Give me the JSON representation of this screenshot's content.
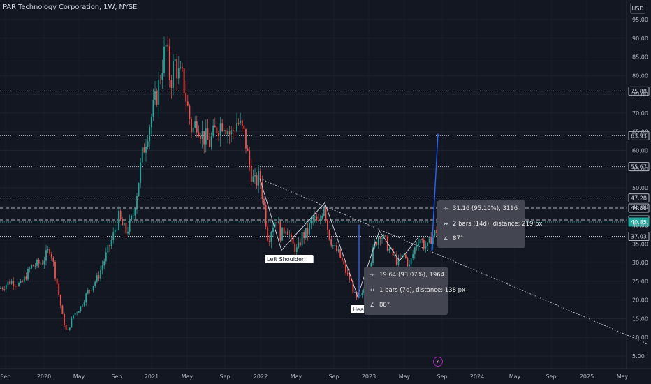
{
  "header": {
    "title": "PAR Technology Corporation, 1W, NYSE"
  },
  "currency_button": "USD",
  "chart_data": {
    "type": "candlestick",
    "symbol": "PAR Technology Corporation",
    "interval": "1W",
    "exchange": "NYSE",
    "y_ticks": [
      "95.00",
      "90.00",
      "85.00",
      "80.00",
      "75.00",
      "70.00",
      "65.00",
      "60.00",
      "55.00",
      "50.00",
      "45.00",
      "40.00",
      "35.00",
      "30.00",
      "25.00",
      "20.00",
      "15.00",
      "10.00",
      "5.00"
    ],
    "x_ticks": [
      "Sep",
      "2020",
      "May",
      "Sep",
      "2021",
      "May",
      "Sep",
      "2022",
      "May",
      "Sep",
      "2023",
      "May",
      "Sep",
      "2024",
      "May",
      "Sep",
      "2025",
      "May"
    ],
    "ylim": [
      3,
      97
    ],
    "horizontal_levels": [
      {
        "value": 75.88,
        "label": "75.88",
        "style": "dotted"
      },
      {
        "value": 63.93,
        "label": "63.93",
        "style": "dotted"
      },
      {
        "value": 55.67,
        "label": "55.67",
        "style": "dotted"
      },
      {
        "value": 47.28,
        "label": "47.28",
        "style": "dotted"
      },
      {
        "value": 44.58,
        "label": "44.58",
        "style": "dashed"
      },
      {
        "value": 41.42,
        "label": "41.42",
        "style": "dashed"
      },
      {
        "value": 40.85,
        "label": "40.85",
        "style": "current"
      },
      {
        "value": 37.03,
        "label": "37.03",
        "style": "dotted"
      }
    ],
    "annotations": [
      "Left Shoulder",
      "Head"
    ],
    "measure_tools": [
      {
        "lines": [
          "31.16 (95.10%), 3116",
          "2 bars (14d), distance: 219 px",
          "87°"
        ]
      },
      {
        "lines": [
          "19.64 (93.07%), 1964",
          "1 bars (7d), distance: 138 px",
          "88°"
        ]
      }
    ],
    "price_path": [
      {
        "x": 0,
        "y": 23
      },
      {
        "x": 15,
        "y": 25
      },
      {
        "x": 30,
        "y": 24
      },
      {
        "x": 45,
        "y": 29
      },
      {
        "x": 60,
        "y": 30
      },
      {
        "x": 72,
        "y": 34
      },
      {
        "x": 82,
        "y": 24
      },
      {
        "x": 90,
        "y": 15
      },
      {
        "x": 96,
        "y": 11
      },
      {
        "x": 105,
        "y": 16
      },
      {
        "x": 115,
        "y": 18
      },
      {
        "x": 125,
        "y": 22
      },
      {
        "x": 140,
        "y": 26
      },
      {
        "x": 150,
        "y": 31
      },
      {
        "x": 160,
        "y": 36
      },
      {
        "x": 170,
        "y": 42
      },
      {
        "x": 180,
        "y": 38
      },
      {
        "x": 190,
        "y": 42
      },
      {
        "x": 197,
        "y": 50
      },
      {
        "x": 203,
        "y": 58
      },
      {
        "x": 210,
        "y": 64
      },
      {
        "x": 218,
        "y": 70
      },
      {
        "x": 226,
        "y": 76
      },
      {
        "x": 232,
        "y": 83
      },
      {
        "x": 238,
        "y": 88
      },
      {
        "x": 244,
        "y": 78
      },
      {
        "x": 250,
        "y": 84
      },
      {
        "x": 256,
        "y": 80
      },
      {
        "x": 262,
        "y": 79
      },
      {
        "x": 268,
        "y": 72
      },
      {
        "x": 275,
        "y": 65
      },
      {
        "x": 282,
        "y": 68
      },
      {
        "x": 290,
        "y": 64
      },
      {
        "x": 300,
        "y": 62
      },
      {
        "x": 310,
        "y": 66
      },
      {
        "x": 320,
        "y": 68
      },
      {
        "x": 330,
        "y": 64
      },
      {
        "x": 340,
        "y": 68
      },
      {
        "x": 350,
        "y": 64
      },
      {
        "x": 357,
        "y": 56
      },
      {
        "x": 364,
        "y": 51
      },
      {
        "x": 372,
        "y": 53
      },
      {
        "x": 378,
        "y": 45
      },
      {
        "x": 384,
        "y": 36
      },
      {
        "x": 390,
        "y": 40
      },
      {
        "x": 396,
        "y": 42
      },
      {
        "x": 402,
        "y": 37
      },
      {
        "x": 410,
        "y": 40
      },
      {
        "x": 418,
        "y": 35
      },
      {
        "x": 426,
        "y": 33
      },
      {
        "x": 432,
        "y": 37
      },
      {
        "x": 440,
        "y": 38
      },
      {
        "x": 448,
        "y": 42
      },
      {
        "x": 456,
        "y": 40
      },
      {
        "x": 464,
        "y": 46
      },
      {
        "x": 470,
        "y": 38
      },
      {
        "x": 478,
        "y": 34
      },
      {
        "x": 486,
        "y": 32
      },
      {
        "x": 494,
        "y": 28
      },
      {
        "x": 502,
        "y": 25
      },
      {
        "x": 510,
        "y": 20
      },
      {
        "x": 518,
        "y": 21
      },
      {
        "x": 524,
        "y": 25
      },
      {
        "x": 530,
        "y": 30
      },
      {
        "x": 537,
        "y": 35
      },
      {
        "x": 544,
        "y": 38
      },
      {
        "x": 550,
        "y": 36
      },
      {
        "x": 556,
        "y": 34
      },
      {
        "x": 562,
        "y": 32
      },
      {
        "x": 570,
        "y": 30
      },
      {
        "x": 578,
        "y": 32
      },
      {
        "x": 586,
        "y": 29
      },
      {
        "x": 594,
        "y": 34
      },
      {
        "x": 600,
        "y": 37
      },
      {
        "x": 606,
        "y": 35
      },
      {
        "x": 612,
        "y": 34
      },
      {
        "x": 618,
        "y": 37
      },
      {
        "x": 624,
        "y": 38
      },
      {
        "x": 629,
        "y": 40.85
      }
    ]
  }
}
